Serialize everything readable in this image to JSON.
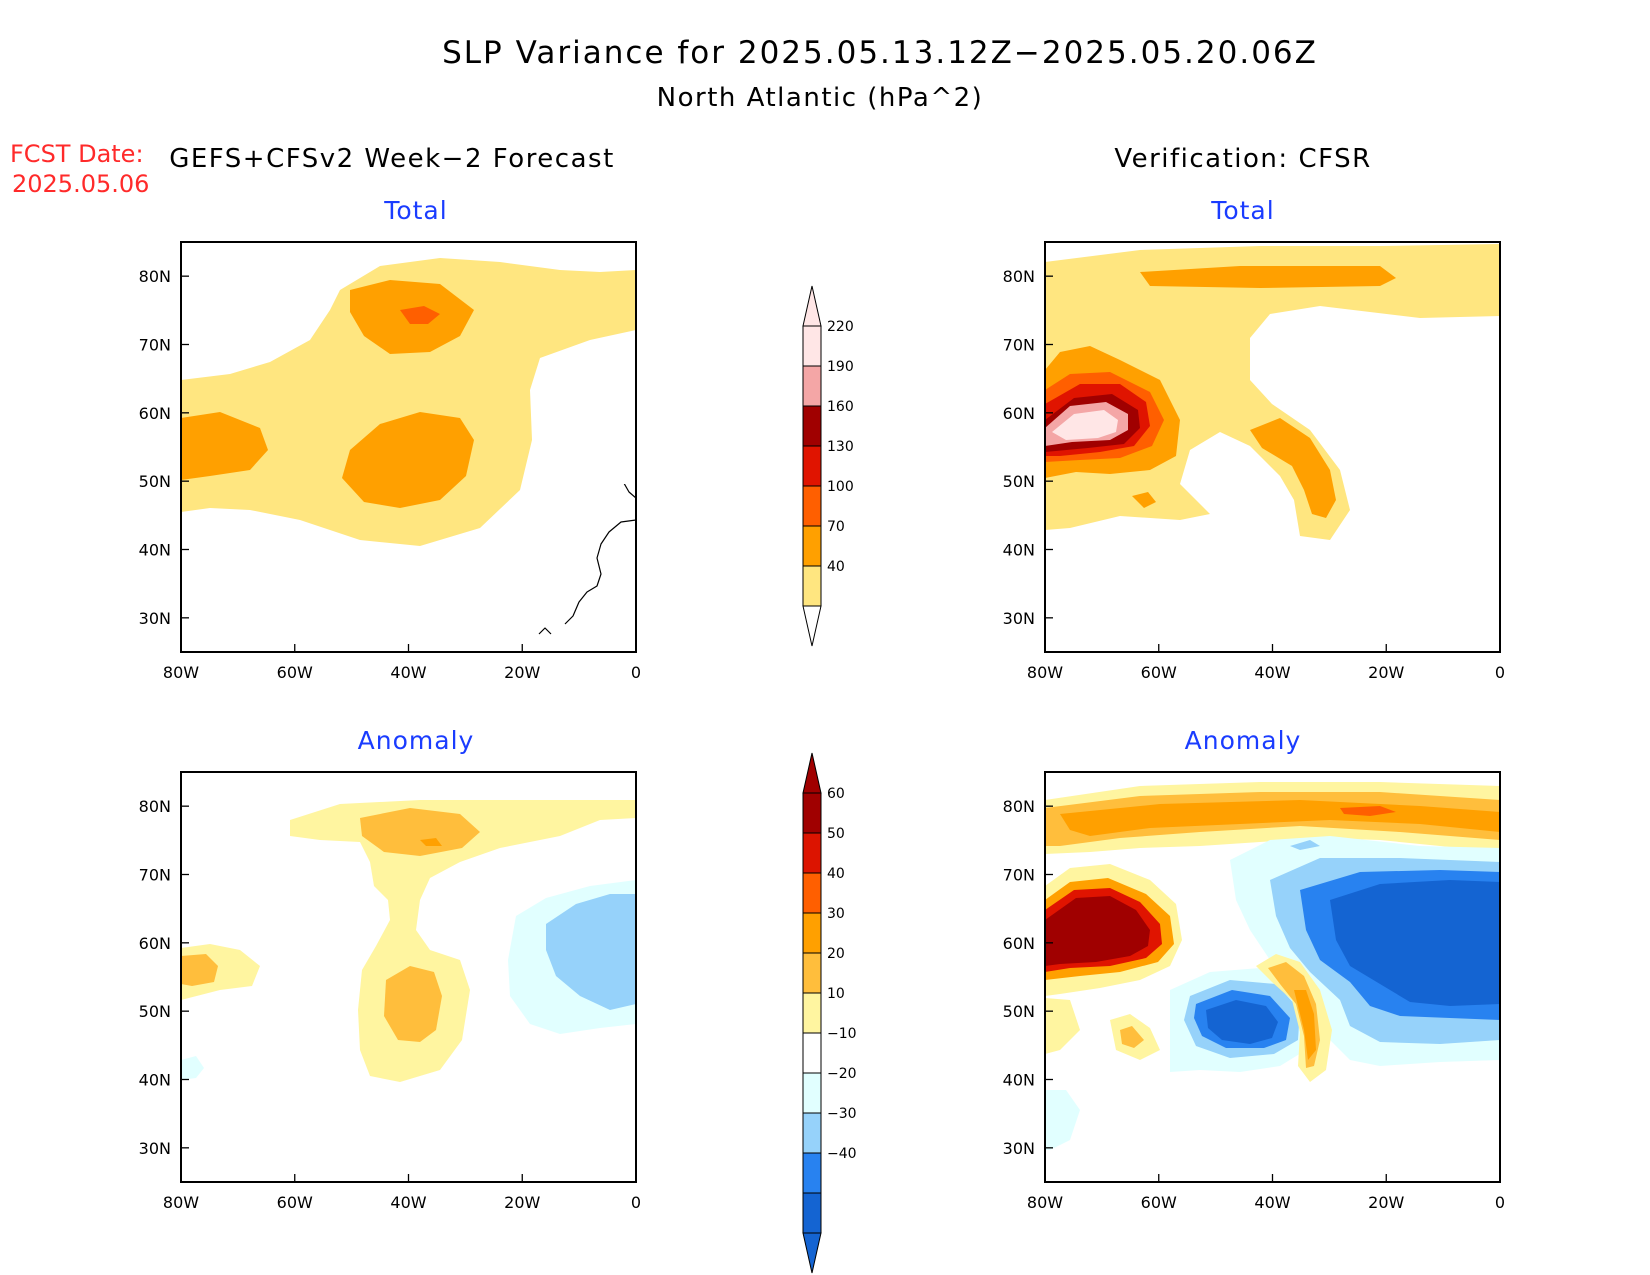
{
  "header": {
    "title": "SLP Variance for 2025.05.13.12Z−2025.05.20.06Z",
    "subtitle": "North Atlantic (hPa^2)",
    "fcst_label": "FCST Date:",
    "fcst_date": "2025.05.06"
  },
  "columns": {
    "left": "GEFS+CFSv2 Week−2 Forecast",
    "right": "Verification: CFSR"
  },
  "panels": [
    {
      "id": "forecast-total",
      "title": "Total"
    },
    {
      "id": "verification-total",
      "title": "Total"
    },
    {
      "id": "forecast-anomaly",
      "title": "Anomaly"
    },
    {
      "id": "verification-anomaly",
      "title": "Anomaly"
    }
  ],
  "axes": {
    "lon_labels": [
      "80W",
      "60W",
      "40W",
      "20W",
      "0"
    ],
    "lon_values": [
      -80,
      -60,
      -40,
      -20,
      0
    ],
    "lat_labels": [
      "80N",
      "70N",
      "60N",
      "50N",
      "40N",
      "30N"
    ],
    "lat_values": [
      80,
      70,
      60,
      50,
      40,
      30
    ],
    "lon_range": [
      -80,
      0
    ],
    "lat_range": [
      25,
      85
    ]
  },
  "colorbars": {
    "total": {
      "labels": [
        "220",
        "190",
        "160",
        "130",
        "100",
        "70",
        "40"
      ],
      "colors": [
        "#ffe6e6",
        "#f4a6a6",
        "#a00000",
        "#e01400",
        "#ff5f00",
        "#ffa000",
        "#ffe680"
      ]
    },
    "anomaly": {
      "labels": [
        "60",
        "50",
        "40",
        "30",
        "20",
        "10",
        "−10",
        "−20",
        "−30",
        "−40"
      ],
      "colors": [
        "#a00000",
        "#dc1400",
        "#ff5f00",
        "#ffa000",
        "#ffbe3c",
        "#fff5a0",
        "#ffffff",
        "#e1ffff",
        "#96d2fa",
        "#2882f0",
        "#1464d2"
      ]
    }
  }
}
